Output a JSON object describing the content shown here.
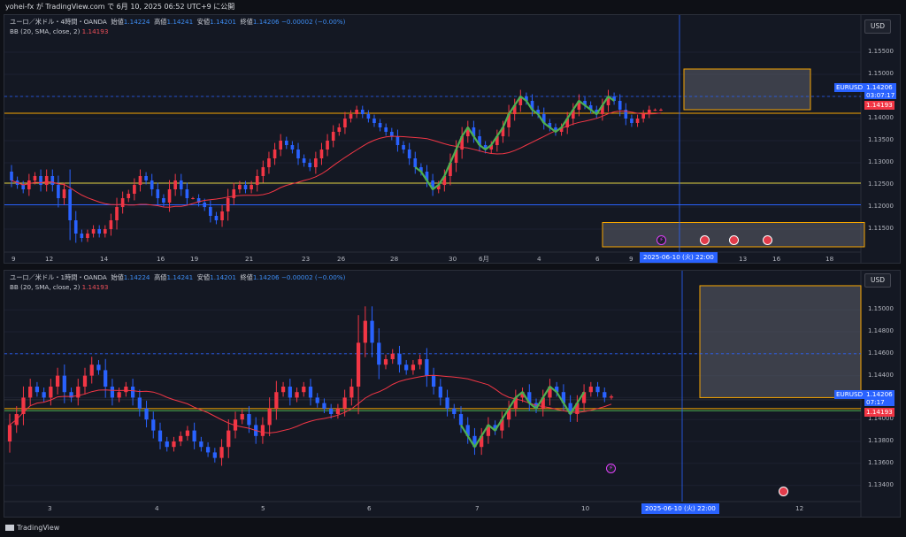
{
  "header": {
    "text": "yohei-fx が TradingView.com で 6月 10, 2025 06:52 UTC+9 に公開"
  },
  "footer": {
    "brand": "TradingView"
  },
  "colors": {
    "up": "#f23645",
    "down": "#2962ff",
    "band": "#f23645",
    "wave": "#4caf50",
    "hline_orange": "#f7a600",
    "hline_yellow": "#e5d545",
    "hline_blue": "#2962ff",
    "zone": "#5d606b"
  },
  "chart_data": [
    {
      "type": "candlestick",
      "panel": "top",
      "symbol_line": {
        "name": "ユーロ／米ドル・4時間・OANDA",
        "o_label": "始値",
        "o": "1.14224",
        "h_label": "高値",
        "h": "1.14241",
        "l_label": "安値",
        "l": "1.14201",
        "c_label": "終値",
        "c": "1.14206",
        "chg": "−0.00002 (−0.00%)"
      },
      "indicator": {
        "label": "BB (20, SMA, close, 2)",
        "value": "1.14193"
      },
      "currency": "USD",
      "y_ticks": [
        "1.15500",
        "1.15000",
        "1.14500",
        "1.14000",
        "1.13500",
        "1.13000",
        "1.12500",
        "1.12000",
        "1.11500"
      ],
      "ylim": [
        1.111,
        1.159
      ],
      "x_ticks": [
        "9",
        "12",
        "14",
        "16",
        "19",
        "21",
        "23",
        "26",
        "28",
        "30",
        "6月",
        "4",
        "6",
        "9",
        "13",
        "16",
        "18"
      ],
      "price_tag": {
        "symbol": "EURUSD",
        "price": "1.14206",
        "countdown": "03:07:17",
        "band_value": "1.14193"
      },
      "crosshair_date": "2025-06-10 (火)  22:00",
      "hlines": [
        1.1412,
        1.1254,
        1.1205
      ],
      "closes": [
        1.126,
        1.125,
        1.124,
        1.126,
        1.127,
        1.125,
        1.127,
        1.125,
        1.122,
        1.124,
        1.117,
        1.114,
        1.113,
        1.114,
        1.115,
        1.114,
        1.115,
        1.117,
        1.12,
        1.122,
        1.123,
        1.125,
        1.127,
        1.126,
        1.124,
        1.122,
        1.121,
        1.124,
        1.126,
        1.124,
        1.122,
        1.122,
        1.121,
        1.12,
        1.118,
        1.117,
        1.119,
        1.122,
        1.124,
        1.125,
        1.124,
        1.125,
        1.127,
        1.129,
        1.131,
        1.133,
        1.135,
        1.134,
        1.133,
        1.131,
        1.13,
        1.129,
        1.131,
        1.133,
        1.135,
        1.137,
        1.138,
        1.14,
        1.141,
        1.142,
        1.141,
        1.14,
        1.139,
        1.138,
        1.137,
        1.136,
        1.134,
        1.133,
        1.131,
        1.129,
        1.128,
        1.126,
        1.124,
        1.125,
        1.127,
        1.13,
        1.133,
        1.136,
        1.138,
        1.136,
        1.134,
        1.133,
        1.134,
        1.136,
        1.138,
        1.141,
        1.143,
        1.145,
        1.144,
        1.142,
        1.141,
        1.139,
        1.138,
        1.137,
        1.138,
        1.14,
        1.142,
        1.144,
        1.143,
        1.142,
        1.141,
        1.143,
        1.145,
        1.144,
        1.142,
        1.14,
        1.139,
        1.14,
        1.141,
        1.142,
        1.142,
        1.142
      ]
    },
    {
      "type": "candlestick",
      "panel": "bottom",
      "symbol_line": {
        "name": "ユーロ／米ドル・1時間・OANDA",
        "o_label": "始値",
        "o": "1.14224",
        "h_label": "高値",
        "h": "1.14241",
        "l_label": "安値",
        "l": "1.14201",
        "c_label": "終値",
        "c": "1.14206",
        "chg": "−0.00002 (−0.00%)"
      },
      "indicator": {
        "label": "BB (20, SMA, close, 2)",
        "value": "1.14193"
      },
      "currency": "USD",
      "y_ticks": [
        "1.15000",
        "1.14800",
        "1.14600",
        "1.14400",
        "1.14200",
        "1.14000",
        "1.13800",
        "1.13600",
        "1.13400"
      ],
      "ylim": [
        1.133,
        1.1526
      ],
      "x_ticks": [
        "3",
        "4",
        "5",
        "6",
        "7",
        "10",
        "12"
      ],
      "price_tag": {
        "symbol": "EURUSD",
        "price": "1.14206",
        "countdown": "07:17",
        "band_value": "1.14193"
      },
      "crosshair_date": "2025-06-10 (火)  22:00",
      "hlines": [
        1.141,
        1.1408,
        1.1418
      ],
      "closes": [
        1.1395,
        1.1405,
        1.142,
        1.143,
        1.1425,
        1.142,
        1.143,
        1.144,
        1.1425,
        1.142,
        1.143,
        1.144,
        1.145,
        1.1445,
        1.143,
        1.142,
        1.1425,
        1.143,
        1.142,
        1.141,
        1.14,
        1.139,
        1.138,
        1.1375,
        1.138,
        1.1385,
        1.139,
        1.138,
        1.1375,
        1.137,
        1.1365,
        1.1375,
        1.139,
        1.14,
        1.1405,
        1.1395,
        1.1385,
        1.1395,
        1.141,
        1.1425,
        1.143,
        1.142,
        1.1425,
        1.143,
        1.142,
        1.1415,
        1.141,
        1.1405,
        1.141,
        1.142,
        1.143,
        1.147,
        1.149,
        1.147,
        1.145,
        1.1455,
        1.146,
        1.145,
        1.1445,
        1.145,
        1.1455,
        1.144,
        1.143,
        1.142,
        1.141,
        1.1405,
        1.1395,
        1.1385,
        1.1375,
        1.1385,
        1.1395,
        1.139,
        1.14,
        1.141,
        1.142,
        1.1425,
        1.1415,
        1.141,
        1.142,
        1.143,
        1.1425,
        1.1415,
        1.1405,
        1.1415,
        1.1425,
        1.143,
        1.1425,
        1.142,
        1.1421
      ]
    }
  ]
}
